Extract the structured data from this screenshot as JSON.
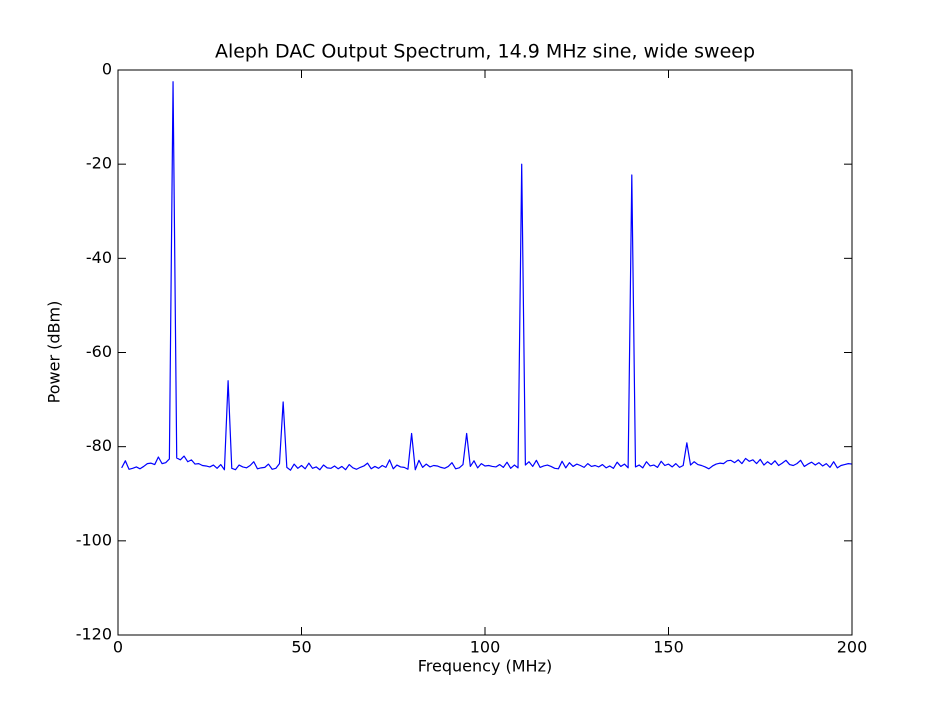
{
  "chart_data": {
    "type": "line",
    "title": "Aleph DAC Output Spectrum, 14.9 MHz sine, wide sweep",
    "x_label": "Frequency (MHz)",
    "y_label": "Power (dBm)",
    "xlim": [
      0,
      200
    ],
    "ylim": [
      -120,
      0
    ],
    "xticks": [
      0,
      50,
      100,
      150,
      200
    ],
    "yticks": [
      -120,
      -100,
      -80,
      -60,
      -40,
      -20,
      0
    ],
    "grid": false,
    "x": [
      1,
      2,
      3,
      4,
      5,
      6,
      7,
      8,
      9,
      10,
      11,
      12,
      13,
      14,
      15,
      16,
      17,
      18,
      19,
      20,
      21,
      22,
      23,
      24,
      25,
      26,
      27,
      28,
      29,
      30,
      31,
      32,
      33,
      34,
      35,
      36,
      37,
      38,
      39,
      40,
      41,
      42,
      43,
      44,
      45,
      46,
      47,
      48,
      49,
      50,
      51,
      52,
      53,
      54,
      55,
      56,
      57,
      58,
      59,
      60,
      61,
      62,
      63,
      64,
      65,
      66,
      67,
      68,
      69,
      70,
      71,
      72,
      73,
      74,
      75,
      76,
      77,
      78,
      79,
      80,
      81,
      82,
      83,
      84,
      85,
      86,
      87,
      88,
      89,
      90,
      91,
      92,
      93,
      94,
      95,
      96,
      97,
      98,
      99,
      100,
      101,
      102,
      103,
      104,
      105,
      106,
      107,
      108,
      109,
      110,
      111,
      112,
      113,
      114,
      115,
      116,
      117,
      118,
      119,
      120,
      121,
      122,
      123,
      124,
      125,
      126,
      127,
      128,
      129,
      130,
      131,
      132,
      133,
      134,
      135,
      136,
      137,
      138,
      139,
      140,
      141,
      142,
      143,
      144,
      145,
      146,
      147,
      148,
      149,
      150,
      151,
      152,
      153,
      154,
      155,
      156,
      157,
      158,
      159,
      160,
      161,
      162,
      163,
      164,
      165,
      166,
      167,
      168,
      169,
      170,
      171,
      172,
      173,
      174,
      175,
      176,
      177,
      178,
      179,
      180,
      181,
      182,
      183,
      184,
      185,
      186,
      187,
      188,
      189,
      190,
      191,
      192,
      193,
      194,
      195,
      196,
      197,
      198,
      199,
      200
    ],
    "series": [
      {
        "color": "#0000ff",
        "values": [
          -84.5,
          -83.0,
          -84.8,
          -84.6,
          -84.3,
          -84.7,
          -84.2,
          -83.6,
          -83.5,
          -83.8,
          -82.2,
          -83.6,
          -83.4,
          -82.6,
          -2.5,
          -82.4,
          -82.8,
          -82.0,
          -83.2,
          -82.8,
          -83.7,
          -83.6,
          -84.0,
          -84.1,
          -84.3,
          -83.9,
          -84.6,
          -83.8,
          -84.9,
          -66.0,
          -84.6,
          -84.9,
          -83.9,
          -84.3,
          -84.5,
          -84.0,
          -83.2,
          -84.7,
          -84.5,
          -84.4,
          -83.7,
          -84.8,
          -84.6,
          -83.6,
          -70.5,
          -84.4,
          -85.0,
          -83.7,
          -84.6,
          -84.0,
          -84.7,
          -83.5,
          -84.6,
          -84.3,
          -84.9,
          -83.9,
          -84.5,
          -84.6,
          -84.1,
          -84.7,
          -84.2,
          -84.9,
          -83.8,
          -84.5,
          -84.8,
          -84.4,
          -84.1,
          -83.5,
          -84.7,
          -84.2,
          -84.6,
          -84.0,
          -84.4,
          -82.8,
          -84.7,
          -83.9,
          -84.3,
          -84.4,
          -84.8,
          -77.2,
          -84.9,
          -82.9,
          -84.4,
          -83.7,
          -84.3,
          -84.0,
          -84.1,
          -84.4,
          -84.6,
          -84.2,
          -83.4,
          -84.7,
          -84.5,
          -83.8,
          -77.2,
          -84.2,
          -83.0,
          -84.5,
          -83.6,
          -84.1,
          -84.0,
          -84.2,
          -84.3,
          -83.8,
          -84.4,
          -83.3,
          -84.6,
          -83.9,
          -84.5,
          -20.0,
          -83.9,
          -83.2,
          -84.2,
          -82.9,
          -84.4,
          -84.1,
          -83.9,
          -84.2,
          -84.6,
          -84.7,
          -83.1,
          -84.5,
          -83.4,
          -84.2,
          -83.7,
          -84.0,
          -84.4,
          -83.6,
          -84.2,
          -84.0,
          -84.3,
          -83.8,
          -84.5,
          -84.1,
          -84.6,
          -83.3,
          -84.2,
          -83.7,
          -84.5,
          -22.3,
          -84.3,
          -83.9,
          -84.5,
          -83.2,
          -84.1,
          -83.9,
          -84.4,
          -83.1,
          -84.0,
          -83.7,
          -84.3,
          -83.6,
          -84.4,
          -84.0,
          -79.2,
          -83.9,
          -83.2,
          -83.8,
          -84.0,
          -84.3,
          -84.7,
          -84.1,
          -83.7,
          -83.5,
          -83.6,
          -83.0,
          -82.9,
          -83.4,
          -82.8,
          -83.6,
          -82.5,
          -83.1,
          -82.8,
          -83.6,
          -82.7,
          -83.9,
          -83.2,
          -83.8,
          -83.0,
          -84.0,
          -83.5,
          -82.9,
          -83.8,
          -84.0,
          -83.6,
          -82.9,
          -84.2,
          -83.7,
          -83.3,
          -83.9,
          -83.4,
          -84.1,
          -83.6,
          -84.4,
          -83.2,
          -84.5,
          -84.0,
          -83.8,
          -83.6,
          -83.7
        ]
      }
    ]
  }
}
